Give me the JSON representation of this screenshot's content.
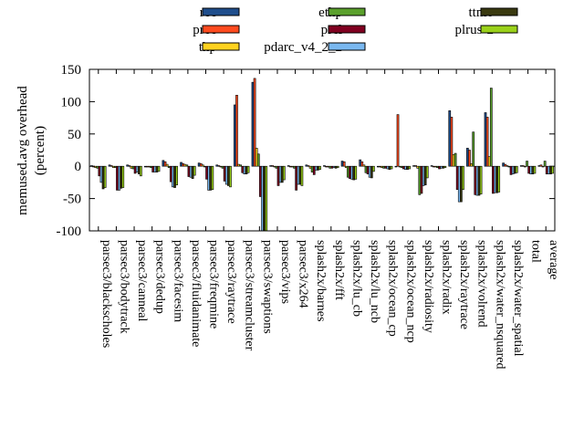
{
  "chart_data": {
    "type": "bar",
    "title": "",
    "xlabel": "",
    "ylabel": "memused.avg overhead\n(percent)",
    "ylim": [
      -100,
      150
    ],
    "yticks": [
      -100,
      -50,
      0,
      50,
      100,
      150
    ],
    "legend_position": "top",
    "grid": false,
    "categories": [
      "parsec3/blackscholes",
      "parsec3/bodytrack",
      "parsec3/canneal",
      "parsec3/dedup",
      "parsec3/facesim",
      "parsec3/fluidanimate",
      "parsec3/freqmine",
      "parsec3/raytrace",
      "parsec3/streamcluster",
      "parsec3/swaptions",
      "parsec3/vips",
      "parsec3/x264",
      "splash2x/barnes",
      "splash2x/fft",
      "splash2x/lu_cb",
      "splash2x/lu_ncb",
      "splash2x/ocean_cp",
      "splash2x/ocean_ncp",
      "splash2x/radiosity",
      "splash2x/radix",
      "splash2x/raytrace",
      "splash2x/volrend",
      "splash2x/water_nsquared",
      "splash2x/water_spatial",
      "total",
      "average"
    ],
    "series": [
      {
        "name": "rec",
        "color": "#1f4e8c",
        "values": [
          1,
          2,
          2,
          -1,
          9,
          6,
          5,
          2,
          95,
          130,
          1,
          1,
          2,
          1,
          8,
          10,
          0,
          0,
          1,
          1,
          86,
          28,
          83,
          5,
          1,
          1
        ]
      },
      {
        "name": "prec",
        "color": "#ff4b1f",
        "values": [
          0,
          1,
          1,
          0,
          7,
          4,
          4,
          1,
          110,
          136,
          1,
          0,
          1,
          0,
          7,
          7,
          0,
          80,
          1,
          0,
          76,
          25,
          76,
          3,
          1,
          2
        ]
      },
      {
        "name": "thp",
        "color": "#ffd21f",
        "values": [
          -2,
          -2,
          -3,
          -1,
          3,
          3,
          2,
          0,
          3,
          28,
          -1,
          -1,
          -3,
          -1,
          -2,
          2,
          -2,
          -1,
          -3,
          -1,
          18,
          4,
          15,
          1,
          0,
          0
        ]
      },
      {
        "name": "ethp",
        "color": "#5aa02c",
        "values": [
          -3,
          -2,
          -4,
          -2,
          -2,
          2,
          0,
          -3,
          2,
          19,
          -3,
          -3,
          -9,
          -3,
          -17,
          -10,
          -3,
          -2,
          -44,
          -2,
          20,
          53,
          121,
          -1,
          8,
          8
        ]
      },
      {
        "name": "prcl",
        "color": "#800020",
        "values": [
          -15,
          -37,
          -11,
          -9,
          -24,
          -16,
          -20,
          -23,
          -10,
          -47,
          -30,
          -37,
          -13,
          -3,
          -19,
          -12,
          -3,
          -4,
          -42,
          -4,
          -36,
          -44,
          -42,
          -13,
          -11,
          -12
        ]
      },
      {
        "name": "pdarc_v4_2_2",
        "color": "#7ab8f0",
        "values": [
          -25,
          -37,
          -9,
          -9,
          -32,
          -17,
          -37,
          -28,
          -12,
          -100,
          -25,
          -28,
          -6,
          -2,
          -20,
          -17,
          -4,
          -5,
          -30,
          -3,
          -55,
          -45,
          -41,
          -12,
          -12,
          -12
        ]
      },
      {
        "name": "ttmo",
        "color": "#3a3a10",
        "values": [
          -35,
          -34,
          -12,
          -9,
          -33,
          -19,
          -37,
          -30,
          -12,
          -100,
          -25,
          -28,
          -6,
          -3,
          -21,
          -18,
          -5,
          -5,
          -29,
          -3,
          -55,
          -45,
          -41,
          -11,
          -12,
          -12
        ]
      },
      {
        "name": "plrus-2",
        "color": "#9ad11a",
        "values": [
          -33,
          -33,
          -15,
          -8,
          -29,
          -14,
          -36,
          -32,
          -10,
          -100,
          -21,
          -30,
          -5,
          -2,
          -20,
          -8,
          -4,
          -4,
          -18,
          -2,
          -36,
          -43,
          -40,
          -10,
          -11,
          -11
        ]
      }
    ]
  }
}
